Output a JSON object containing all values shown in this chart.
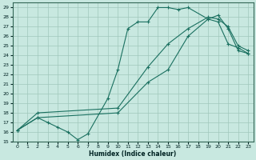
{
  "xlabel": "Humidex (Indice chaleur)",
  "bg_color": "#c8e8e0",
  "grid_color": "#a0c8bc",
  "line_color": "#1a7060",
  "xlim": [
    -0.5,
    23.5
  ],
  "ylim": [
    15,
    29.5
  ],
  "xticks": [
    0,
    1,
    2,
    3,
    4,
    5,
    6,
    7,
    8,
    9,
    10,
    11,
    12,
    13,
    14,
    15,
    16,
    17,
    18,
    19,
    20,
    21,
    22,
    23
  ],
  "yticks": [
    15,
    16,
    17,
    18,
    19,
    20,
    21,
    22,
    23,
    24,
    25,
    26,
    27,
    28,
    29
  ],
  "line1_x": [
    0,
    2,
    3,
    4,
    5,
    6,
    7,
    9,
    10,
    11,
    12,
    13,
    14,
    15,
    16,
    17,
    19,
    20,
    21,
    22,
    23
  ],
  "line1_y": [
    16.2,
    17.5,
    17.0,
    16.5,
    16.0,
    15.2,
    15.8,
    19.5,
    22.5,
    26.8,
    27.5,
    27.5,
    29.0,
    29.0,
    28.8,
    29.0,
    27.8,
    27.5,
    25.2,
    24.8,
    24.2
  ],
  "line2_x": [
    0,
    2,
    10,
    13,
    15,
    17,
    19,
    20,
    21,
    22,
    23
  ],
  "line2_y": [
    16.2,
    18.0,
    18.5,
    22.8,
    25.2,
    26.8,
    28.0,
    27.8,
    27.0,
    25.0,
    24.5
  ],
  "line3_x": [
    0,
    2,
    10,
    13,
    15,
    17,
    19,
    20,
    21,
    22,
    23
  ],
  "line3_y": [
    16.2,
    17.5,
    18.0,
    21.2,
    22.5,
    26.0,
    27.8,
    28.2,
    26.8,
    24.5,
    24.2
  ]
}
